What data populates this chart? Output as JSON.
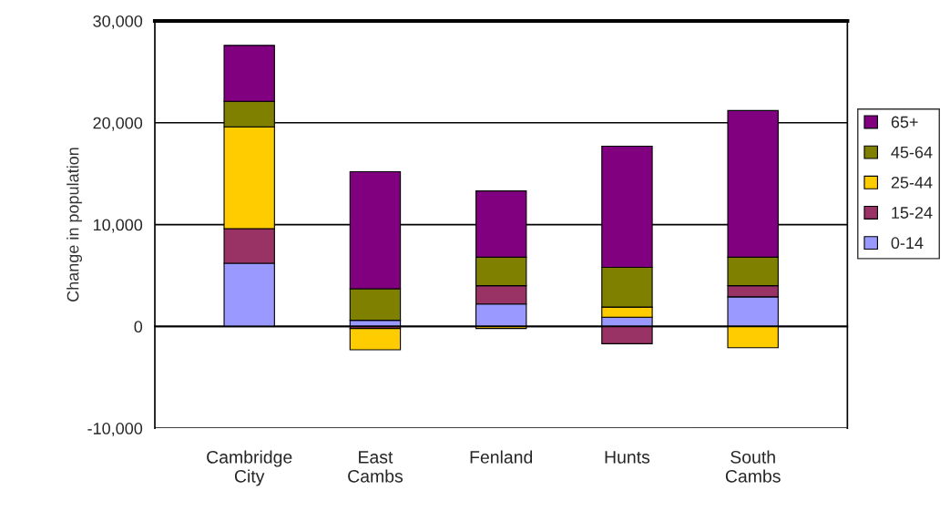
{
  "chart_data": {
    "type": "bar",
    "stacked": true,
    "ylabel": "Change in population",
    "categories": [
      "Cambridge\nCity",
      "East\nCambs",
      "Fenland",
      "Hunts",
      "South\nCambs"
    ],
    "series": [
      {
        "name": "0-14",
        "color": "#9999ff",
        "values": [
          6200,
          600,
          2200,
          900,
          2900
        ]
      },
      {
        "name": "15-24",
        "color": "#993366",
        "values": [
          3400,
          -200,
          1800,
          -1700,
          1100
        ]
      },
      {
        "name": "25-44",
        "color": "#ffcc00",
        "values": [
          10000,
          -2100,
          -200,
          1000,
          -2100
        ]
      },
      {
        "name": "45-64",
        "color": "#808000",
        "values": [
          2500,
          3100,
          2800,
          3900,
          2800
        ]
      },
      {
        "name": "65+",
        "color": "#800080",
        "values": [
          5500,
          11500,
          6500,
          11900,
          14400
        ]
      }
    ],
    "ylim": [
      -10000,
      30000
    ],
    "yticks": [
      {
        "value": -10000,
        "label": "-10,000"
      },
      {
        "value": 0,
        "label": "0"
      },
      {
        "value": 10000,
        "label": "10,000"
      },
      {
        "value": 20000,
        "label": "20,000"
      },
      {
        "value": 30000,
        "label": "30,000"
      }
    ],
    "grid": "y",
    "legend": "right"
  }
}
